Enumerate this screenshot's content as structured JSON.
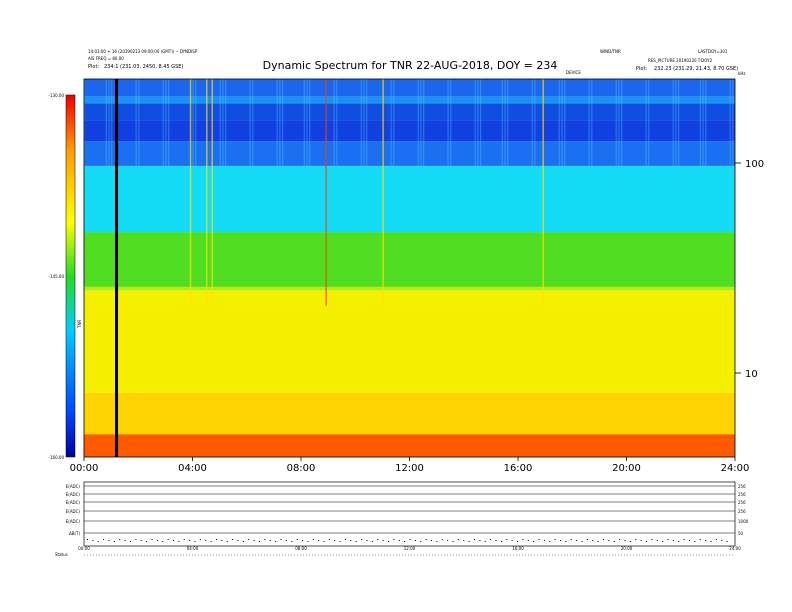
{
  "header": {
    "left_line1": "14:03:00 + 16 (20190213 09:00:00 (GMT)) -- DYNDISP",
    "left_line2": "AIS FREQ = 80.00",
    "left_line3_label": "Plot:",
    "left_line3_value": "234:1 (231.03, 2450, 8.45 GSE)",
    "right_line1_left": "WIND/TNR",
    "right_line1_right": "LASTDOY=301",
    "right_line2": "RES_PICTURE 20190220 T:DOY2",
    "right_line3_label": "Plot:",
    "right_line3_value": "232.23 (231.29, 21.43, 8.70 GSE)",
    "marker_label": "DEVICE",
    "khz_label": "kHz"
  },
  "chart_data": {
    "type": "heatmap",
    "title": "Dynamic Spectrum for TNR 22-AUG-2018, DOY = 234",
    "x_tick_labels": [
      "00:00",
      "04:00",
      "08:00",
      "12:00",
      "16:00",
      "20:00",
      "24:00"
    ],
    "x_range_hours": [
      0,
      24
    ],
    "y_axis": {
      "scale": "log",
      "unit": "kHz",
      "tick_labels": [
        "100",
        "10"
      ],
      "tick_values": [
        100,
        10
      ]
    },
    "colorbar": {
      "label": "TNR",
      "tick_labels": [
        "-130.00",
        "-145.00",
        "-160.00"
      ],
      "range": [
        -160,
        -130
      ],
      "colors": [
        "#00009a",
        "#0044ff",
        "#00ccff",
        "#22dd22",
        "#ffff00",
        "#ff9900",
        "#ee0000"
      ]
    },
    "marker_time_hours": 1.2,
    "bands": [
      {
        "f_from": 1.0,
        "f_to": 0.955,
        "color": "#1a66ee"
      },
      {
        "f_from": 0.955,
        "f_to": 0.935,
        "color": "#1e8ff5"
      },
      {
        "f_from": 0.935,
        "f_to": 0.89,
        "color": "#0f4ee0"
      },
      {
        "f_from": 0.89,
        "f_to": 0.835,
        "color": "#1040e0"
      },
      {
        "f_from": 0.835,
        "f_to": 0.77,
        "color": "#1a70f0"
      },
      {
        "f_from": 0.77,
        "f_to": 0.595,
        "color": "#15dcf5"
      },
      {
        "f_from": 0.595,
        "f_to": 0.45,
        "color": "#4fdf20"
      },
      {
        "f_from": 0.45,
        "f_to": 0.44,
        "color": "#b8ec10"
      },
      {
        "f_from": 0.44,
        "f_to": 0.17,
        "color": "#f4f000"
      },
      {
        "f_from": 0.17,
        "f_to": 0.06,
        "color": "#ffd400"
      },
      {
        "f_from": 0.06,
        "f_to": 0.0,
        "color": "#ff5a00"
      }
    ],
    "bursts_hours": [
      3.9,
      4.5,
      4.7,
      8.9,
      11.0,
      16.9
    ],
    "lower_panel": {
      "row_labels": [
        "E(ADC)",
        "E(ADC)",
        "E(ADC)",
        "E(ADC)",
        "E(ADC)",
        "ΔB(T)"
      ],
      "right_labels": [
        "256",
        "256",
        "256",
        "256",
        "1000",
        "50"
      ],
      "x_tick_labels": [
        "00:00",
        "04:00",
        "08:00",
        "12:00",
        "16:00",
        "20:00",
        "24:00"
      ],
      "status_label": "Status"
    }
  }
}
